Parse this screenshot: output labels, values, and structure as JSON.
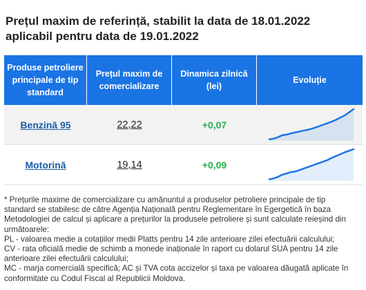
{
  "title": {
    "line1": "Prețul maxim de referință, stabilit la data de 18.01.2022",
    "line2": "aplicabil pentru data de 19.01.2022"
  },
  "table": {
    "headers": {
      "product": [
        "Produse petroliere",
        "principale de tip",
        "standard"
      ],
      "price": [
        "Prețul maxim de",
        "comercializare"
      ],
      "change": [
        "Dinamica zilnică",
        "(lei)"
      ],
      "trend": "Evoluție"
    },
    "rows": [
      {
        "product": "Benzină 95",
        "price": "22,22",
        "change": "+0,07",
        "trend": [
          0.05,
          0.07,
          0.12,
          0.18,
          0.2,
          0.24,
          0.27,
          0.3,
          0.33,
          0.36,
          0.4,
          0.45,
          0.5,
          0.55,
          0.6,
          0.66,
          0.73,
          0.8,
          0.9,
          1.0
        ]
      },
      {
        "product": "Motorină",
        "price": "19,14",
        "change": "+0,09",
        "trend": [
          0.05,
          0.08,
          0.13,
          0.2,
          0.24,
          0.28,
          0.3,
          0.35,
          0.4,
          0.45,
          0.5,
          0.55,
          0.6,
          0.65,
          0.72,
          0.78,
          0.84,
          0.9,
          0.95,
          1.0
        ]
      }
    ],
    "trend_color": "#1b74e4"
  },
  "note": {
    "lines": [
      "* Prețurile maxime de comercializare cu amănuntul a produselor petroliere principale de tip",
      "standard se stabilesc de către Agenția Națională pentru Reglementare în Egergetică în baza",
      "Metodologiei de calcul și aplicare a prețurilor la produsele petroliere și sunt calculate reieșind din",
      "următoarele:",
      "PL - valoarea medie a cotațiilor medii Platts pentru 14 zile anterioare zilei efectuării calculului;",
      "CV - rata oficială medie de schimb a monede inaționale în raport cu dolarul SUA pentru 14 zile",
      "anterioare zilei efectuării calculului;",
      "MC - marja comercială specifică; AC și TVA cota accizelor și taxa pe valoarea dăugată aplicate în",
      "conformitate cu Codul Fiscal al Republicii Moldova."
    ]
  }
}
